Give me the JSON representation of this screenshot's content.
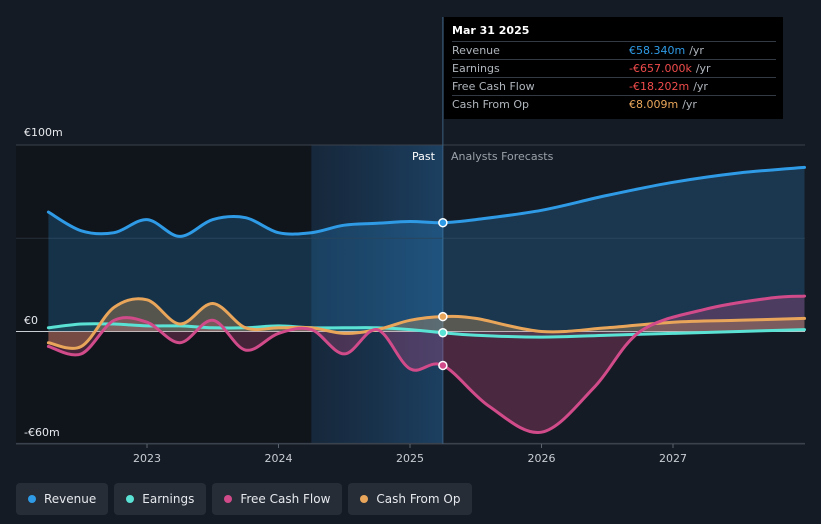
{
  "chart_data": {
    "type": "line",
    "y_axis_labels": [
      "€100m",
      "€0",
      "-€60m"
    ],
    "ylim": [
      -60,
      100
    ],
    "x_tick_labels": [
      "2023",
      "2024",
      "2025",
      "2026",
      "2027"
    ],
    "past_label": "Past",
    "forecast_label": "Analysts Forecasts",
    "series": [
      {
        "name": "Revenue",
        "color": "#2f9be6",
        "points": [
          [
            2022.25,
            64
          ],
          [
            2022.5,
            54
          ],
          [
            2022.75,
            53
          ],
          [
            2023.0,
            60
          ],
          [
            2023.25,
            51
          ],
          [
            2023.5,
            60
          ],
          [
            2023.75,
            61
          ],
          [
            2024.0,
            53
          ],
          [
            2024.25,
            53
          ],
          [
            2024.5,
            57
          ],
          [
            2024.75,
            58
          ],
          [
            2025.0,
            59
          ],
          [
            2025.25,
            58.34
          ],
          [
            2025.5,
            60
          ],
          [
            2026.0,
            65
          ],
          [
            2026.5,
            73
          ],
          [
            2027.0,
            80
          ],
          [
            2027.5,
            85
          ],
          [
            2028.0,
            88
          ]
        ]
      },
      {
        "name": "Earnings",
        "color": "#5ae2d4",
        "points": [
          [
            2022.25,
            2
          ],
          [
            2022.5,
            4
          ],
          [
            2022.75,
            4
          ],
          [
            2023.0,
            3
          ],
          [
            2023.25,
            3
          ],
          [
            2023.5,
            2
          ],
          [
            2023.75,
            2
          ],
          [
            2024.0,
            3
          ],
          [
            2024.25,
            2
          ],
          [
            2024.5,
            2
          ],
          [
            2024.75,
            2
          ],
          [
            2025.0,
            1
          ],
          [
            2025.25,
            -0.657
          ],
          [
            2025.5,
            -2
          ],
          [
            2026.0,
            -3
          ],
          [
            2026.5,
            -2
          ],
          [
            2027.0,
            -1
          ],
          [
            2027.5,
            0
          ],
          [
            2028.0,
            1
          ]
        ]
      },
      {
        "name": "Free Cash Flow",
        "color": "#d14b8a",
        "points": [
          [
            2022.25,
            -8
          ],
          [
            2022.5,
            -12
          ],
          [
            2022.75,
            6
          ],
          [
            2023.0,
            5
          ],
          [
            2023.25,
            -6
          ],
          [
            2023.5,
            6
          ],
          [
            2023.75,
            -10
          ],
          [
            2024.0,
            -1
          ],
          [
            2024.25,
            1
          ],
          [
            2024.5,
            -12
          ],
          [
            2024.75,
            1
          ],
          [
            2025.0,
            -20
          ],
          [
            2025.25,
            -18.202
          ],
          [
            2025.6,
            -40
          ],
          [
            2026.0,
            -54
          ],
          [
            2026.4,
            -30
          ],
          [
            2026.75,
            0
          ],
          [
            2027.25,
            12
          ],
          [
            2027.75,
            18
          ],
          [
            2028.0,
            19
          ]
        ]
      },
      {
        "name": "Cash From Op",
        "color": "#e9a65b",
        "points": [
          [
            2022.25,
            -6
          ],
          [
            2022.5,
            -8
          ],
          [
            2022.75,
            13
          ],
          [
            2023.0,
            17
          ],
          [
            2023.25,
            4
          ],
          [
            2023.5,
            15
          ],
          [
            2023.75,
            2
          ],
          [
            2024.0,
            2
          ],
          [
            2024.25,
            2
          ],
          [
            2024.5,
            -1
          ],
          [
            2024.75,
            1
          ],
          [
            2025.0,
            6
          ],
          [
            2025.25,
            8.009
          ],
          [
            2025.5,
            7
          ],
          [
            2026.0,
            0
          ],
          [
            2026.5,
            2
          ],
          [
            2027.0,
            5
          ],
          [
            2027.5,
            6
          ],
          [
            2028.0,
            7
          ]
        ]
      }
    ],
    "highlight_x": 2025.25
  },
  "tooltip": {
    "date": "Mar 31 2025",
    "unit": "/yr",
    "rows": [
      {
        "label": "Revenue",
        "value": "€58.340m",
        "color": "#2f9be6"
      },
      {
        "label": "Earnings",
        "value": "-€657.000k",
        "color": "#ef4b4b"
      },
      {
        "label": "Free Cash Flow",
        "value": "-€18.202m",
        "color": "#ef4b4b"
      },
      {
        "label": "Cash From Op",
        "value": "€8.009m",
        "color": "#e9a65b"
      }
    ]
  },
  "legend": [
    {
      "label": "Revenue",
      "color": "#2f9be6"
    },
    {
      "label": "Earnings",
      "color": "#5ae2d4"
    },
    {
      "label": "Free Cash Flow",
      "color": "#d14b8a"
    },
    {
      "label": "Cash From Op",
      "color": "#e9a65b"
    }
  ]
}
